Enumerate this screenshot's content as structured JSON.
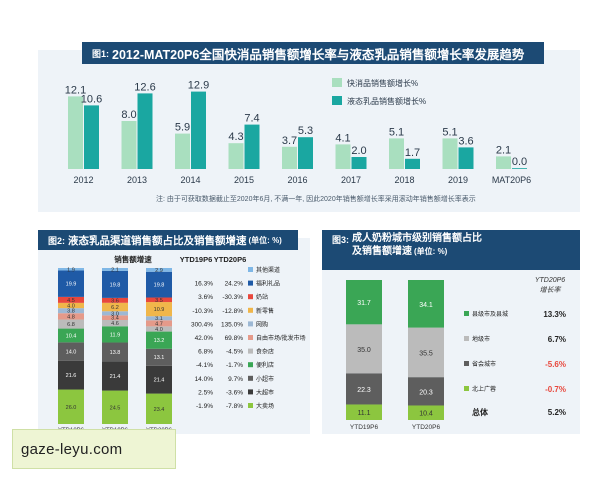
{
  "panel1": {
    "num": "图1:",
    "title": "2012-MAT20P6全国快消品销售额增长率与液态乳品销售额增长率发展趋势",
    "note": "注: 由于可获取数据截止至2020年6月, 不满一年, 因此2020年销售额增长率采用滚动年销售额增长率表示"
  },
  "panel2": {
    "num": "图2:",
    "title": "液态乳品渠道销售额占比及销售额增速",
    "unit": "(单位: %)",
    "head_sales": "销售额增速",
    "head_ytd19": "YTD19P6",
    "head_ytd20": "YTD20P6"
  },
  "panel3": {
    "num": "图3:",
    "title_line1": "成人奶粉城市级别销售额占比",
    "title_line2": "及销售额增速",
    "unit": "(单位: %)",
    "growth_head1": "YTD20P6",
    "growth_head2": "增长率",
    "total_label": "总体",
    "total_value": "5.2%"
  },
  "watermark": "gaze-leyu.com",
  "colors": {
    "title_bg": "#1c4a74",
    "fmcg": "#a9dfbf",
    "liquid": "#1aa7a1",
    "negative": "#e8473c"
  },
  "chart_data": [
    {
      "type": "bar",
      "categories": [
        "2012",
        "2013",
        "2014",
        "2015",
        "2016",
        "2017",
        "2018",
        "2019",
        "MAT20P6"
      ],
      "series": [
        {
          "name": "快消品销售额增长%",
          "values": [
            12.1,
            8.0,
            5.9,
            4.3,
            3.7,
            4.1,
            5.1,
            5.1,
            2.1
          ],
          "labels": [
            "12.1",
            "8.0",
            "5.9",
            "4.3",
            "3.7",
            "4.1",
            "5.1",
            "5.1",
            "2.1"
          ]
        },
        {
          "name": "液态乳品销售额增长%",
          "values": [
            10.6,
            12.6,
            12.9,
            7.4,
            5.3,
            2.0,
            1.7,
            3.6,
            0.0
          ],
          "labels": [
            "10.6",
            "12.6",
            "12.9",
            "7.4",
            "5.3",
            "2.0",
            "1.7",
            "3.6",
            "0.0"
          ]
        }
      ]
    },
    {
      "type": "bar",
      "stacked": true,
      "categories": [
        "YTD18P6",
        "YTD19P6",
        "YTD20P6"
      ],
      "series": [
        {
          "name": "大卖场",
          "color": "#8cc63f",
          "values": [
            26.0,
            24.5,
            23.4
          ],
          "ytd19": "-1.9%",
          "ytd20": "-7.8%"
        },
        {
          "name": "大超市",
          "color": "#3a3a3a",
          "values": [
            21.6,
            21.4,
            21.4
          ],
          "ytd19": "2.5%",
          "ytd20": "-3.6%"
        },
        {
          "name": "小超市",
          "color": "#5e5e5e",
          "values": [
            14.0,
            13.8,
            13.1
          ],
          "ytd19": "14.0%",
          "ytd20": "9.7%"
        },
        {
          "name": "便利店",
          "color": "#3aa655",
          "values": [
            10.4,
            11.9,
            13.2
          ],
          "ytd19": "-4.1%",
          "ytd20": "-1.7%"
        },
        {
          "name": "食杂店",
          "color": "#bbbbbb",
          "values": [
            6.8,
            4.6,
            4.0
          ],
          "ytd19": "6.8%",
          "ytd20": "-4.5%"
        },
        {
          "name": "自由市场/批发市场",
          "color": "#e59a8a",
          "values": [
            4.8,
            3.4,
            4.7
          ],
          "ytd19": "42.0%",
          "ytd20": "69.8%"
        },
        {
          "name": "网购",
          "color": "#9db8d4",
          "values": [
            3.8,
            3.0,
            3.1
          ],
          "ytd19": "300.4%",
          "ytd20": "135.0%"
        },
        {
          "name": "新零售",
          "color": "#f0b64a",
          "values": [
            4.0,
            6.2,
            10.9
          ],
          "ytd19": "-10.3%",
          "ytd20": "-12.8%"
        },
        {
          "name": "奶站",
          "color": "#e8473c",
          "values": [
            4.5,
            3.6,
            3.5
          ],
          "ytd19": "3.6%",
          "ytd20": "-30.3%"
        },
        {
          "name": "福利礼品",
          "color": "#1f5aa6",
          "values": [
            19.9,
            19.8,
            19.8
          ],
          "ytd19": "16.3%",
          "ytd20": "24.2%"
        },
        {
          "name": "其他渠道",
          "color": "#7fb7e6",
          "values": [
            1.9,
            2.1,
            2.9
          ],
          "ytd19": "",
          "ytd20": ""
        }
      ],
      "labels": [
        [
          "26.0",
          "21.6",
          "14.0",
          "10.4",
          "6.8",
          "4.8",
          "3.8",
          "4.0",
          "4.5",
          "19.9",
          "1.9"
        ],
        [
          "24.5",
          "21.4",
          "13.8",
          "11.9",
          "4.6",
          "3.4",
          "3.0",
          "6.2",
          "3.6",
          "19.8",
          "2.1"
        ],
        [
          "23.4",
          "21.4",
          "13.1",
          "13.2",
          "4.0",
          "4.7",
          "3.1",
          "10.9",
          "3.5",
          "19.8",
          "2.9"
        ]
      ]
    },
    {
      "type": "bar",
      "stacked": true,
      "categories": [
        "YTD19P6",
        "YTD20P6"
      ],
      "series": [
        {
          "name": "北上广蓉",
          "color": "#8cc63f",
          "values": [
            11.1,
            10.4
          ],
          "growth": "-0.7%"
        },
        {
          "name": "省会城市",
          "color": "#5e5e5e",
          "values": [
            22.3,
            20.3
          ],
          "growth": "-5.6%"
        },
        {
          "name": "地级市",
          "color": "#bbbbbb",
          "values": [
            35.0,
            35.5
          ],
          "growth": "6.7%"
        },
        {
          "name": "县级市及县城",
          "color": "#3aa655",
          "values": [
            31.7,
            34.1
          ],
          "growth": "13.3%"
        }
      ]
    }
  ]
}
